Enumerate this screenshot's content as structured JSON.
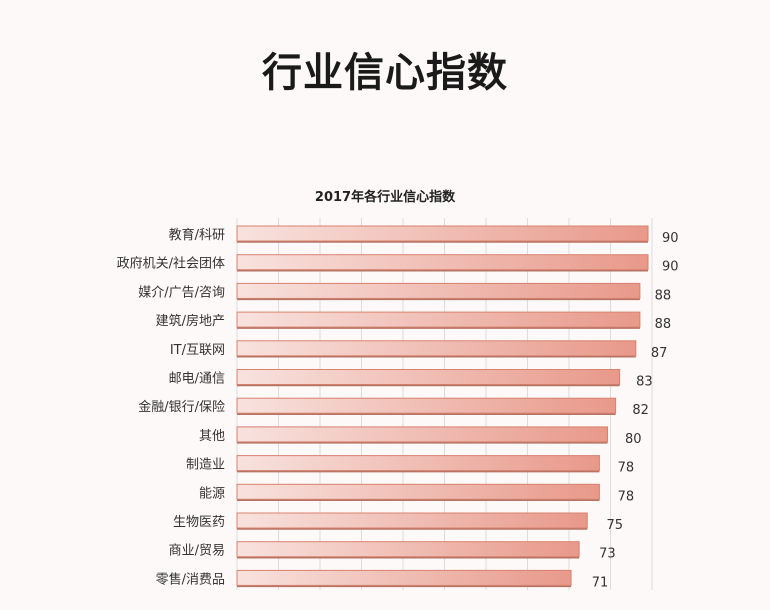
{
  "page_title": "行业信心指数",
  "chart_data": {
    "type": "bar",
    "orientation": "horizontal",
    "title": "2017年各行业信心指数",
    "xlabel": "",
    "ylabel": "",
    "grid": true,
    "bar_color": "#e8998a",
    "bar_color_light": "#f8e2de",
    "categories": [
      "教育/科研",
      "政府机关/社会团体",
      "媒介/广告/咨询",
      "建筑/房地产",
      "IT/互联网",
      "邮电/通信",
      "金融/银行/保险",
      "其他",
      "制造业",
      "能源",
      "生物医药",
      "商业/贸易",
      "零售/消费品"
    ],
    "values": [
      90,
      90,
      88,
      88,
      87,
      83,
      82,
      80,
      78,
      78,
      75,
      73,
      71
    ]
  }
}
